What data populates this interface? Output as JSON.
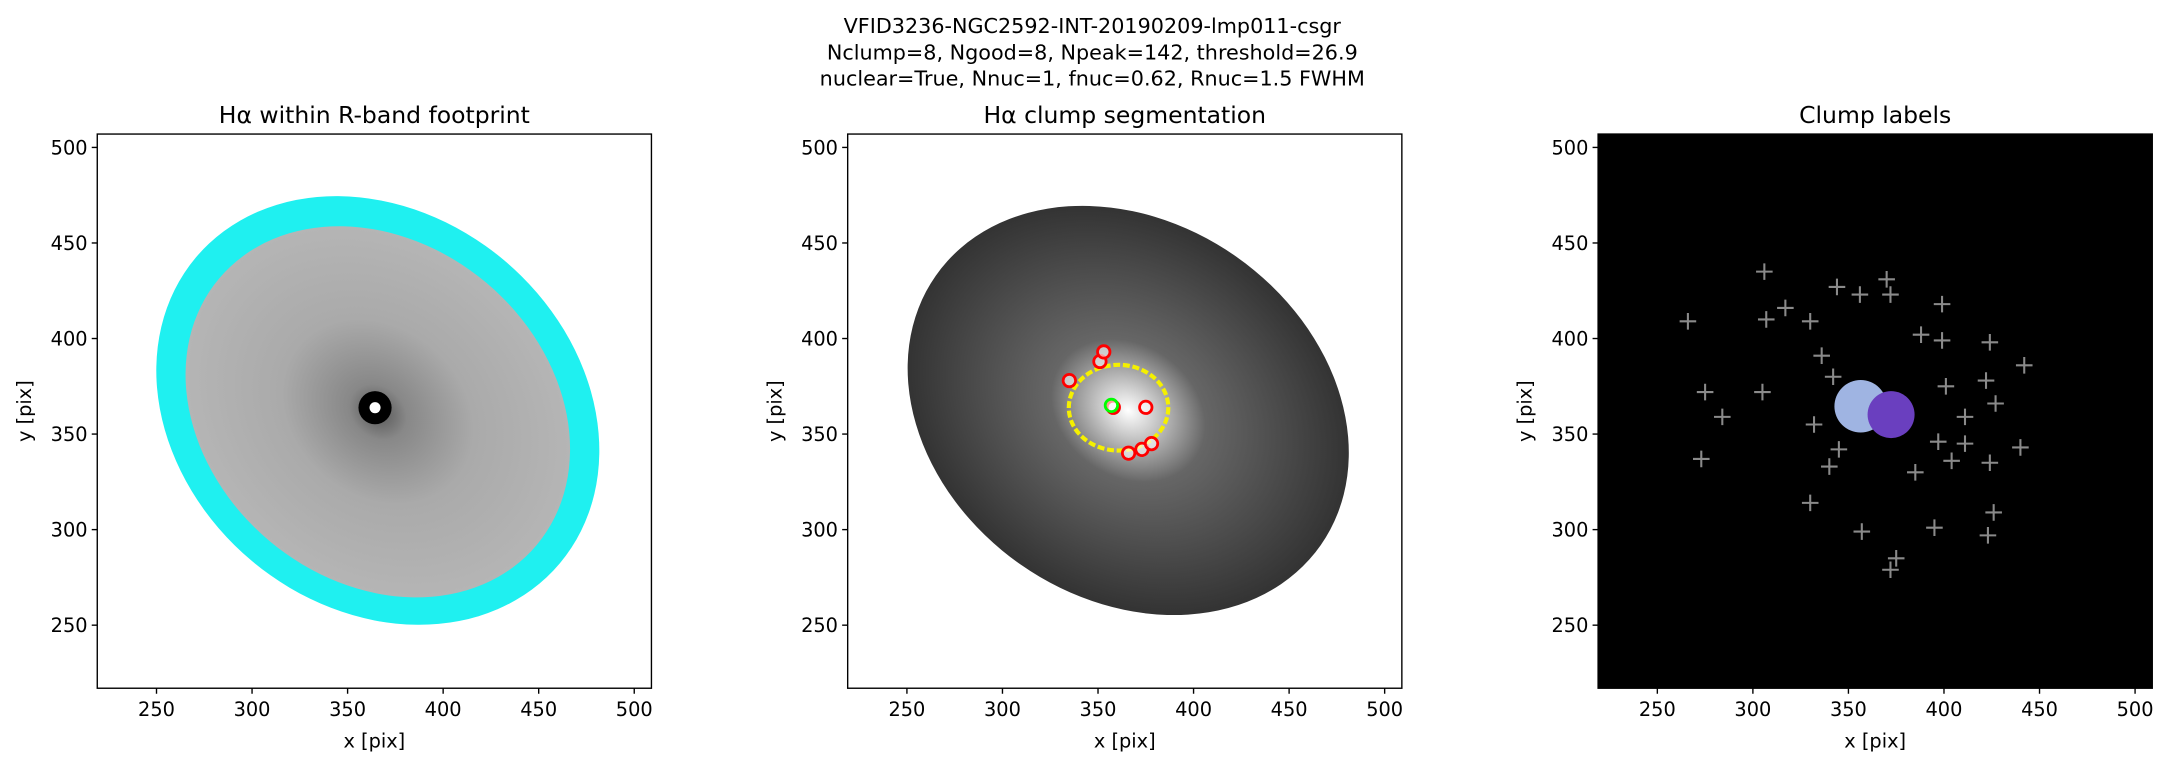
{
  "suptitle": [
    "VFID3236-NGC2592-INT-20190209-lmp011-csgr",
    "Nclump=8, Ngood=8, Npeak=142, threshold=26.9",
    "nuclear=True, Nnuc=1, fnuc=0.62, Rnuc=1.5 FWHM"
  ],
  "chart_data": [
    {
      "type": "image",
      "title": "Hα within R-band footprint",
      "xlabel": "x [pix]",
      "ylabel": "y [pix]",
      "xlim": [
        219,
        509
      ],
      "ylim": [
        217,
        507
      ],
      "xticks": [
        250,
        300,
        350,
        400,
        450,
        500
      ],
      "yticks": [
        250,
        300,
        350,
        400,
        450,
        500
      ],
      "background": "#ffffff"
    },
    {
      "type": "image",
      "title": "Hα clump segmentation",
      "xlabel": "x [pix]",
      "ylabel": "y [pix]",
      "xlim": [
        219,
        509
      ],
      "ylim": [
        217,
        507
      ],
      "xticks": [
        250,
        300,
        350,
        400,
        450,
        500
      ],
      "yticks": [
        250,
        300,
        350,
        400,
        450,
        500
      ],
      "background": "#ffffff",
      "series": [
        {
          "color": "#ff0000",
          "marker": "o",
          "x": [
            335,
            351,
            353,
            358,
            375,
            366,
            373,
            378
          ],
          "y": [
            378,
            388,
            393,
            364,
            364,
            340,
            342,
            345
          ]
        },
        {
          "color": "#00ff00",
          "marker": "o",
          "x": [
            357
          ],
          "y": [
            365
          ]
        }
      ]
    },
    {
      "type": "image",
      "title": "Clump labels",
      "xlabel": "x [pix]",
      "ylabel": "y [pix]",
      "xlim": [
        219,
        509
      ],
      "ylim": [
        217,
        507
      ],
      "xticks": [
        250,
        300,
        350,
        400,
        450,
        500
      ],
      "yticks": [
        250,
        300,
        350,
        400,
        450,
        500
      ],
      "background": "#000000",
      "series": [
        {
          "color": "#8a8a8a",
          "marker": "+",
          "x": [
            266,
            275,
            284,
            273,
            306,
            307,
            317,
            305,
            330,
            330,
            357,
            344,
            356,
            370,
            372,
            399,
            399,
            375,
            372,
            395,
            401,
            424,
            422,
            427,
            442,
            411,
            411,
            440,
            424,
            426,
            423,
            336,
            342,
            332,
            345,
            340,
            385,
            397,
            404,
            388
          ],
          "y": [
            409,
            372,
            359,
            337,
            435,
            410,
            416,
            372,
            409,
            314,
            299,
            427,
            423,
            431,
            423,
            418,
            399,
            285,
            279,
            301,
            375,
            398,
            378,
            366,
            386,
            359,
            345,
            343,
            335,
            309,
            297,
            391,
            380,
            355,
            342,
            333,
            330,
            346,
            336,
            402
          ]
        }
      ]
    }
  ]
}
